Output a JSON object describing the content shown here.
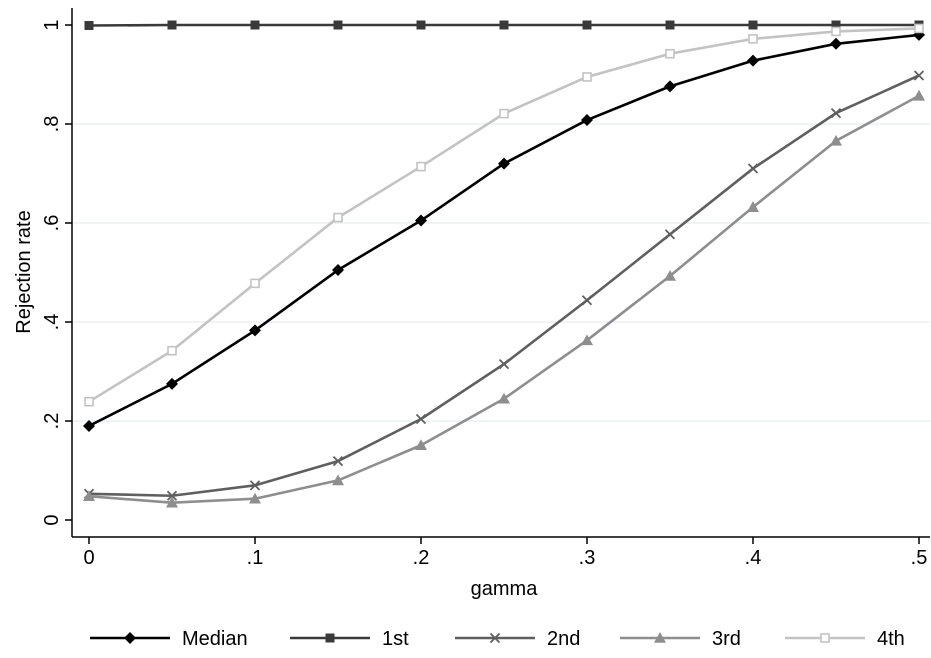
{
  "chart_data": {
    "type": "line",
    "title": "",
    "xlabel": "gamma",
    "ylabel": "Rejection rate",
    "xlim": [
      0,
      0.5
    ],
    "ylim": [
      0,
      1
    ],
    "x": [
      0,
      0.05,
      0.1,
      0.15,
      0.2,
      0.25,
      0.3,
      0.35,
      0.4,
      0.45,
      0.5
    ],
    "x_ticks": [
      {
        "value": 0,
        "label": "0"
      },
      {
        "value": 0.1,
        "label": ".1"
      },
      {
        "value": 0.2,
        "label": ".2"
      },
      {
        "value": 0.3,
        "label": ".3"
      },
      {
        "value": 0.4,
        "label": ".4"
      },
      {
        "value": 0.5,
        "label": ".5"
      }
    ],
    "y_ticks": [
      {
        "value": 0,
        "label": "0"
      },
      {
        "value": 0.2,
        "label": ".2"
      },
      {
        "value": 0.4,
        "label": ".4"
      },
      {
        "value": 0.6,
        "label": ".6"
      },
      {
        "value": 0.8,
        "label": ".8"
      },
      {
        "value": 1,
        "label": "1"
      }
    ],
    "grid": true,
    "legend_position": "bottom",
    "series": [
      {
        "name": "Median",
        "color": "#000000",
        "marker": "diamond",
        "values": [
          0.19,
          0.275,
          0.383,
          0.505,
          0.605,
          0.72,
          0.808,
          0.876,
          0.928,
          0.962,
          0.98
        ]
      },
      {
        "name": "1st",
        "color": "#3a3a3a",
        "marker": "square",
        "values": [
          0.999,
          1,
          1,
          1,
          1,
          1,
          1,
          1,
          1,
          1,
          1
        ]
      },
      {
        "name": "2nd",
        "color": "#5f5f5f",
        "marker": "cross",
        "values": [
          0.053,
          0.049,
          0.07,
          0.119,
          0.204,
          0.315,
          0.444,
          0.577,
          0.71,
          0.822,
          0.898
        ]
      },
      {
        "name": "3rd",
        "color": "#8e8e8e",
        "marker": "triangle",
        "values": [
          0.048,
          0.035,
          0.043,
          0.08,
          0.151,
          0.245,
          0.363,
          0.493,
          0.632,
          0.766,
          0.857
        ]
      },
      {
        "name": "4th",
        "color": "#c3c3c3",
        "marker": "hollow-square",
        "values": [
          0.239,
          0.342,
          0.478,
          0.611,
          0.714,
          0.821,
          0.895,
          0.942,
          0.972,
          0.987,
          0.993
        ]
      }
    ]
  }
}
